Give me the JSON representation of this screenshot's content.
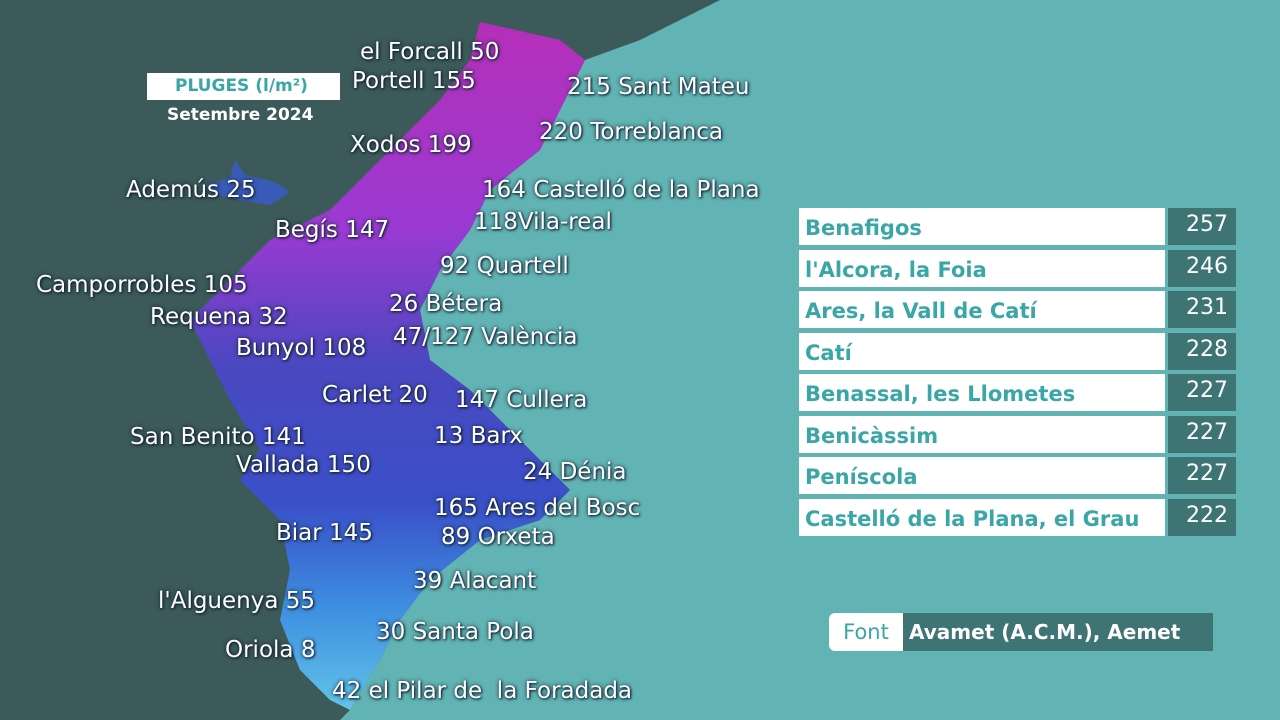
{
  "header": {
    "title": "PLUGES (l/m²)",
    "subtitle": "Setembre 2024"
  },
  "map_labels": [
    "el Forcall 50",
    "Portell 155",
    "215 Sant Mateu",
    "220 Torreblanca",
    "Xodos 199",
    "Ademús 25",
    "164 Castelló de la Plana",
    "118Vila-real",
    "Begís 147",
    "92 Quartell",
    "Camporrobles 105",
    "26 Bétera",
    "Requena 32",
    "47/127 València",
    "Bunyol 108",
    "Carlet 20",
    "147 Cullera",
    "San Benito 141",
    "13 Barx",
    "Vallada 150",
    "24 Dénia",
    "165 Ares del Bosc",
    "Biar 145",
    "89 Orxeta",
    "39 Alacant",
    "l'Alguenya 55",
    "30 Santa Pola",
    "Oriola 8",
    "42 el Pilar de  la Foradada"
  ],
  "table": {
    "rows": [
      [
        "Benafigos",
        257
      ],
      [
        "l'Alcora, la Foia",
        246
      ],
      [
        "Ares, la Vall de Catí",
        231
      ],
      [
        "Catí",
        228
      ],
      [
        "Benassal, les Llometes",
        227
      ],
      [
        "Benicàssim",
        227
      ],
      [
        "Peníscola",
        227
      ],
      [
        "Castelló de la Plana, el Grau",
        222
      ]
    ]
  },
  "source": {
    "label": "Font",
    "text": "Avamet (A.C.M.), Aemet"
  }
}
